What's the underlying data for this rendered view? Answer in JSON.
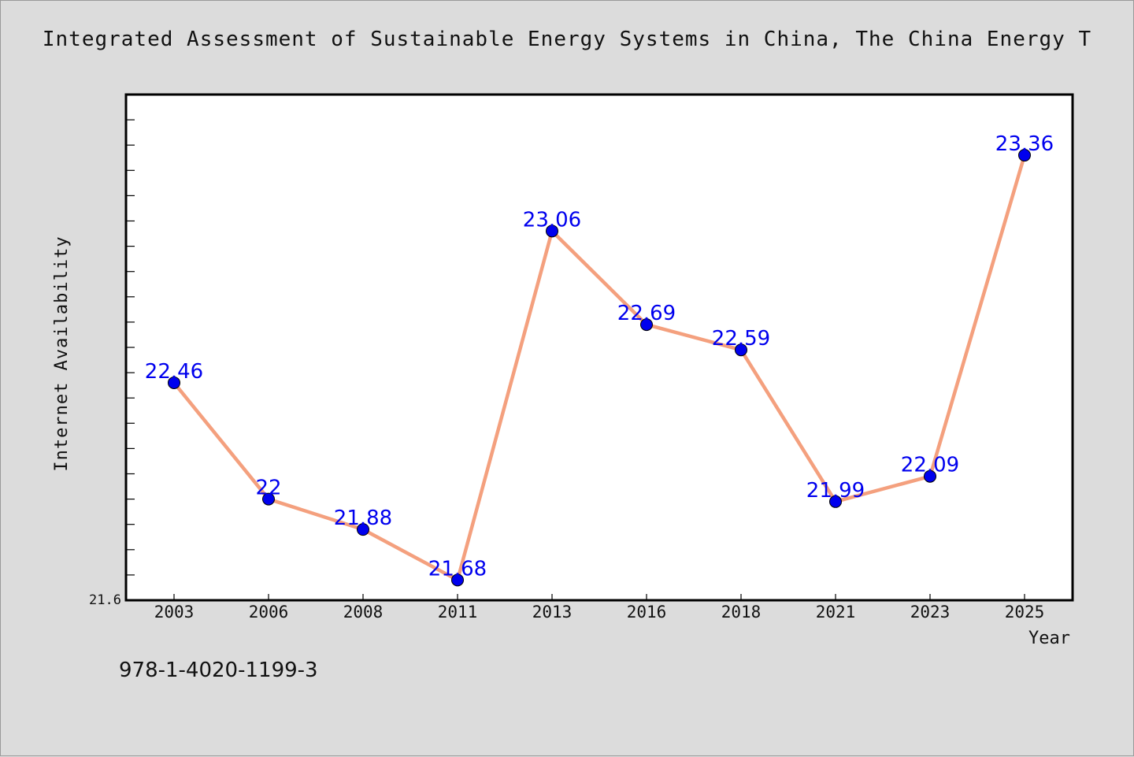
{
  "title": "Integrated Assessment of Sustainable Energy Systems in China, The China Energy T",
  "footnote": "978-1-4020-1199-3",
  "chart_data": {
    "type": "line",
    "xlabel": "Year",
    "ylabel": "Internet Availability",
    "categories": [
      "2003",
      "2006",
      "2008",
      "2011",
      "2013",
      "2016",
      "2018",
      "2021",
      "2023",
      "2025"
    ],
    "values": [
      22.46,
      22,
      21.88,
      21.68,
      23.06,
      22.69,
      22.59,
      21.99,
      22.09,
      23.36
    ],
    "data_labels": [
      "22.46",
      "22",
      "21.88",
      "21.68",
      "23.06",
      "22.69",
      "22.59",
      "21.99",
      "22.09",
      "23.36"
    ],
    "ylim": [
      21.6,
      23.6
    ],
    "y_tick_labels": [
      "21.6"
    ],
    "grid": false,
    "line_color": "#f4a07e",
    "marker_color": "#0000ee",
    "label_color": "#0000ee"
  }
}
